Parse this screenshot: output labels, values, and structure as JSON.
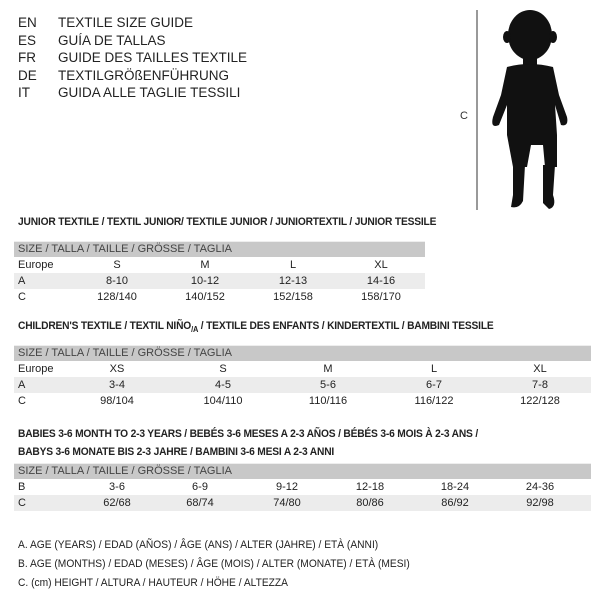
{
  "languages": [
    {
      "code": "EN",
      "title": "TEXTILE SIZE GUIDE"
    },
    {
      "code": "ES",
      "title": "GUÍA DE TALLAS"
    },
    {
      "code": "FR",
      "title": "GUIDE DES TAILLES TEXTILE"
    },
    {
      "code": "DE",
      "title": "TEXTILGRÖßENFÜHRUNG"
    },
    {
      "code": "IT",
      "title": "GUIDA ALLE TAGLIE TESSILI"
    }
  ],
  "figure": {
    "label": "C",
    "icon": "child-silhouette"
  },
  "junior": {
    "title": "JUNIOR TEXTILE / TEXTIL JUNIOR/ TEXTILE JUNIOR / JUNIORTEXTIL / JUNIOR TESSILE",
    "header": "SIZE / TALLA / TAILLE / GRÖSSE / TAGLIA",
    "rows": [
      {
        "label": "Europe",
        "cells": [
          "S",
          "M",
          "L",
          "XL"
        ]
      },
      {
        "label": "A",
        "cells": [
          "8-10",
          "10-12",
          "12-13",
          "14-16"
        ]
      },
      {
        "label": "C",
        "cells": [
          "128/140",
          "140/152",
          "152/158",
          "158/170"
        ]
      }
    ]
  },
  "children": {
    "title_a": "CHILDREN'S TEXTILE / TEXTIL NIÑO",
    "title_sub": "/A",
    "title_b": " / TEXTILE DES ENFANTS / KINDERTEXTIL / BAMBINI TESSILE",
    "header": "SIZE / TALLA / TAILLE / GRÖSSE / TAGLIA",
    "rows": [
      {
        "label": "Europe",
        "cells": [
          "XS",
          "S",
          "M",
          "L",
          "XL"
        ]
      },
      {
        "label": "A",
        "cells": [
          "3-4",
          "4-5",
          "5-6",
          "6-7",
          "7-8"
        ]
      },
      {
        "label": "C",
        "cells": [
          "98/104",
          "104/110",
          "110/116",
          "116/122",
          "122/128"
        ]
      }
    ]
  },
  "babies": {
    "title_line1": "BABIES 3-6 MONTH TO 2-3 YEARS / BEBÉS 3-6 MESES A 2-3 AÑOS / BÉBÉS 3-6 MOIS À 2-3 ANS /",
    "title_line2": "BABYS 3-6 MONATE BIS 2-3 JAHRE / BAMBINI 3-6 MESI A 2-3 ANNI",
    "header": "SIZE / TALLA / TAILLE / GRÖSSE / TAGLIA",
    "rows": [
      {
        "label": "B",
        "cells": [
          "3-6",
          "6-9",
          "9-12",
          "12-18",
          "18-24",
          "24-36"
        ]
      },
      {
        "label": "C",
        "cells": [
          "62/68",
          "68/74",
          "74/80",
          "80/86",
          "86/92",
          "92/98"
        ]
      }
    ]
  },
  "legend": [
    "A. AGE (YEARS) / EDAD (AÑOS) / ÂGE (ANS) / ALTER (JAHRE) / ETÀ (ANNI)",
    "B. AGE (MONTHS) / EDAD (MESES) / ÂGE (MOIS) / ALTER (MONATE) / ETÀ (MESI)",
    "C. (cm) HEIGHT / ALTURA / HAUTEUR / HÖHE / ALTEZZA"
  ]
}
